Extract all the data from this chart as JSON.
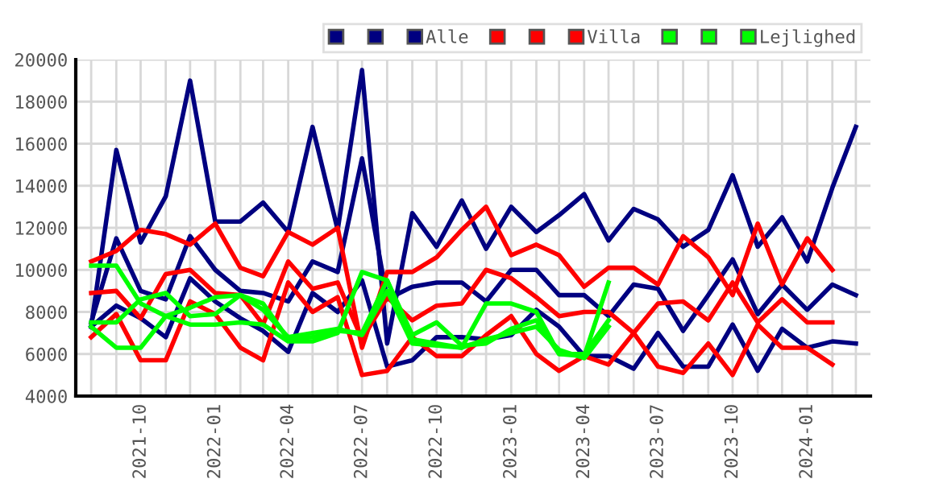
{
  "chart_data": {
    "type": "line",
    "x": [
      "2021-08",
      "2021-09",
      "2021-10",
      "2021-11",
      "2021-12",
      "2022-01",
      "2022-02",
      "2022-03",
      "2022-04",
      "2022-05",
      "2022-06",
      "2022-07",
      "2022-08",
      "2022-09",
      "2022-10",
      "2022-11",
      "2022-12",
      "2023-01",
      "2023-02",
      "2023-03",
      "2023-04",
      "2023-05",
      "2023-06",
      "2023-07",
      "2023-08",
      "2023-09",
      "2023-10",
      "2023-11",
      "2023-12",
      "2024-01",
      "2024-02",
      "2024-03"
    ],
    "series": [
      {
        "color": "#000080",
        "values": [
          7300,
          15700,
          11300,
          13500,
          19000,
          12300,
          12300,
          13200,
          11800,
          16800,
          11900,
          19500,
          6500,
          12700,
          11100,
          13300,
          11000,
          13000,
          11800,
          12600,
          13600,
          11400,
          12900,
          12400,
          11100,
          11900,
          14500,
          11100,
          12500,
          10400,
          13900,
          16800
        ]
      },
      {
        "color": "#000080",
        "values": [
          7500,
          11500,
          9000,
          8600,
          11600,
          10000,
          9000,
          8900,
          8500,
          10400,
          9900,
          15300,
          8600,
          9200,
          9400,
          9400,
          8500,
          10000,
          10000,
          8800,
          8800,
          7800,
          9300,
          9100,
          7100,
          8800,
          10500,
          7900,
          9300,
          8100,
          9300,
          8800
        ]
      },
      {
        "name": "Alle",
        "color": "#000080",
        "values": [
          7300,
          8300,
          7700,
          6800,
          9600,
          8500,
          7700,
          7100,
          6100,
          8900,
          8000,
          9500,
          5400,
          5700,
          6800,
          6800,
          6700,
          6900,
          8100,
          7300,
          5900,
          5900,
          5300,
          7000,
          5400,
          5400,
          7400,
          5200,
          7200,
          6300,
          6600,
          6500
        ]
      },
      {
        "color": "#ff0000",
        "values": [
          10400,
          10900,
          11900,
          11700,
          11200,
          12200,
          10100,
          9700,
          11800,
          11200,
          12000,
          6300,
          9900,
          9900,
          10600,
          11900,
          13000,
          10700,
          11200,
          10700,
          9200,
          10100,
          10100,
          9300,
          11600,
          10600,
          8800,
          12200,
          9300,
          11500,
          10000,
          null
        ]
      },
      {
        "color": "#ff0000",
        "values": [
          8900,
          9000,
          7700,
          9800,
          10000,
          8900,
          8800,
          7400,
          10400,
          9100,
          9400,
          6700,
          8700,
          7600,
          8300,
          8400,
          10000,
          9600,
          8700,
          7800,
          8000,
          8000,
          7000,
          8400,
          8500,
          7600,
          9400,
          7500,
          8600,
          7500,
          7500,
          null
        ]
      },
      {
        "name": "Villa",
        "color": "#ff0000",
        "values": [
          6800,
          7900,
          5700,
          5700,
          8500,
          7900,
          6300,
          5700,
          9400,
          8000,
          8700,
          5000,
          5200,
          6800,
          5900,
          5900,
          6900,
          7800,
          6000,
          5200,
          5900,
          5500,
          7000,
          5400,
          5100,
          6500,
          5000,
          7400,
          6300,
          6300,
          5500,
          null
        ]
      },
      {
        "color": "#00ff00",
        "values": [
          10200,
          10200,
          8400,
          7800,
          7400,
          7400,
          7500,
          7400,
          6600,
          6600,
          7000,
          9900,
          9500,
          6700,
          6500,
          6300,
          8400,
          8400,
          8000,
          6000,
          5900,
          9400,
          null,
          null,
          null,
          null,
          null,
          null,
          null,
          null,
          null,
          null
        ]
      },
      {
        "color": "#00ff00",
        "values": [
          7300,
          6300,
          6300,
          7800,
          8200,
          8700,
          8800,
          8400,
          6700,
          6800,
          7100,
          7000,
          9500,
          6900,
          7500,
          6400,
          6500,
          7200,
          7600,
          6000,
          6000,
          7600,
          null,
          null,
          null,
          null,
          null,
          null,
          null,
          null,
          null,
          null
        ]
      },
      {
        "name": "Lejlighed",
        "color": "#00ff00",
        "values": [
          7500,
          7500,
          8600,
          8900,
          7800,
          7900,
          8800,
          8100,
          6800,
          7000,
          7200,
          6900,
          9000,
          6500,
          6400,
          6300,
          6700,
          7000,
          7300,
          6200,
          5800,
          7300,
          null,
          null,
          null,
          null,
          null,
          null,
          null,
          null,
          null,
          null
        ]
      }
    ],
    "xlim": [
      "2021-07-13",
      "2024-03-19"
    ],
    "xticks": [
      {
        "value": "2021-08",
        "label": null
      },
      {
        "value": "2021-09",
        "label": null
      },
      {
        "value": "2021-10",
        "label": "2021-10"
      },
      {
        "value": "2021-11",
        "label": null
      },
      {
        "value": "2021-12",
        "label": null
      },
      {
        "value": "2022-01",
        "label": "2022-01"
      },
      {
        "value": "2022-02",
        "label": null
      },
      {
        "value": "2022-03",
        "label": null
      },
      {
        "value": "2022-04",
        "label": "2022-04"
      },
      {
        "value": "2022-05",
        "label": null
      },
      {
        "value": "2022-06",
        "label": null
      },
      {
        "value": "2022-07",
        "label": "2022-07"
      },
      {
        "value": "2022-08",
        "label": null
      },
      {
        "value": "2022-09",
        "label": null
      },
      {
        "value": "2022-10",
        "label": "2022-10"
      },
      {
        "value": "2022-11",
        "label": null
      },
      {
        "value": "2022-12",
        "label": null
      },
      {
        "value": "2023-01",
        "label": "2023-01"
      },
      {
        "value": "2023-02",
        "label": null
      },
      {
        "value": "2023-03",
        "label": null
      },
      {
        "value": "2023-04",
        "label": "2023-04"
      },
      {
        "value": "2023-05",
        "label": null
      },
      {
        "value": "2023-06",
        "label": null
      },
      {
        "value": "2023-07",
        "label": "2023-07"
      },
      {
        "value": "2023-08",
        "label": null
      },
      {
        "value": "2023-09",
        "label": null
      },
      {
        "value": "2023-10",
        "label": "2023-10"
      },
      {
        "value": "2023-11",
        "label": null
      },
      {
        "value": "2023-12",
        "label": null
      },
      {
        "value": "2024-01",
        "label": "2024-01"
      },
      {
        "value": "2024-02",
        "label": null
      },
      {
        "value": "2024-03",
        "label": null
      }
    ],
    "ylim": [
      4000,
      20000
    ],
    "yticks": [
      4000,
      6000,
      8000,
      10000,
      12000,
      14000,
      16000,
      18000,
      20000
    ],
    "grid": true,
    "legend": "top right",
    "marker": "none",
    "line_style": "solid"
  }
}
